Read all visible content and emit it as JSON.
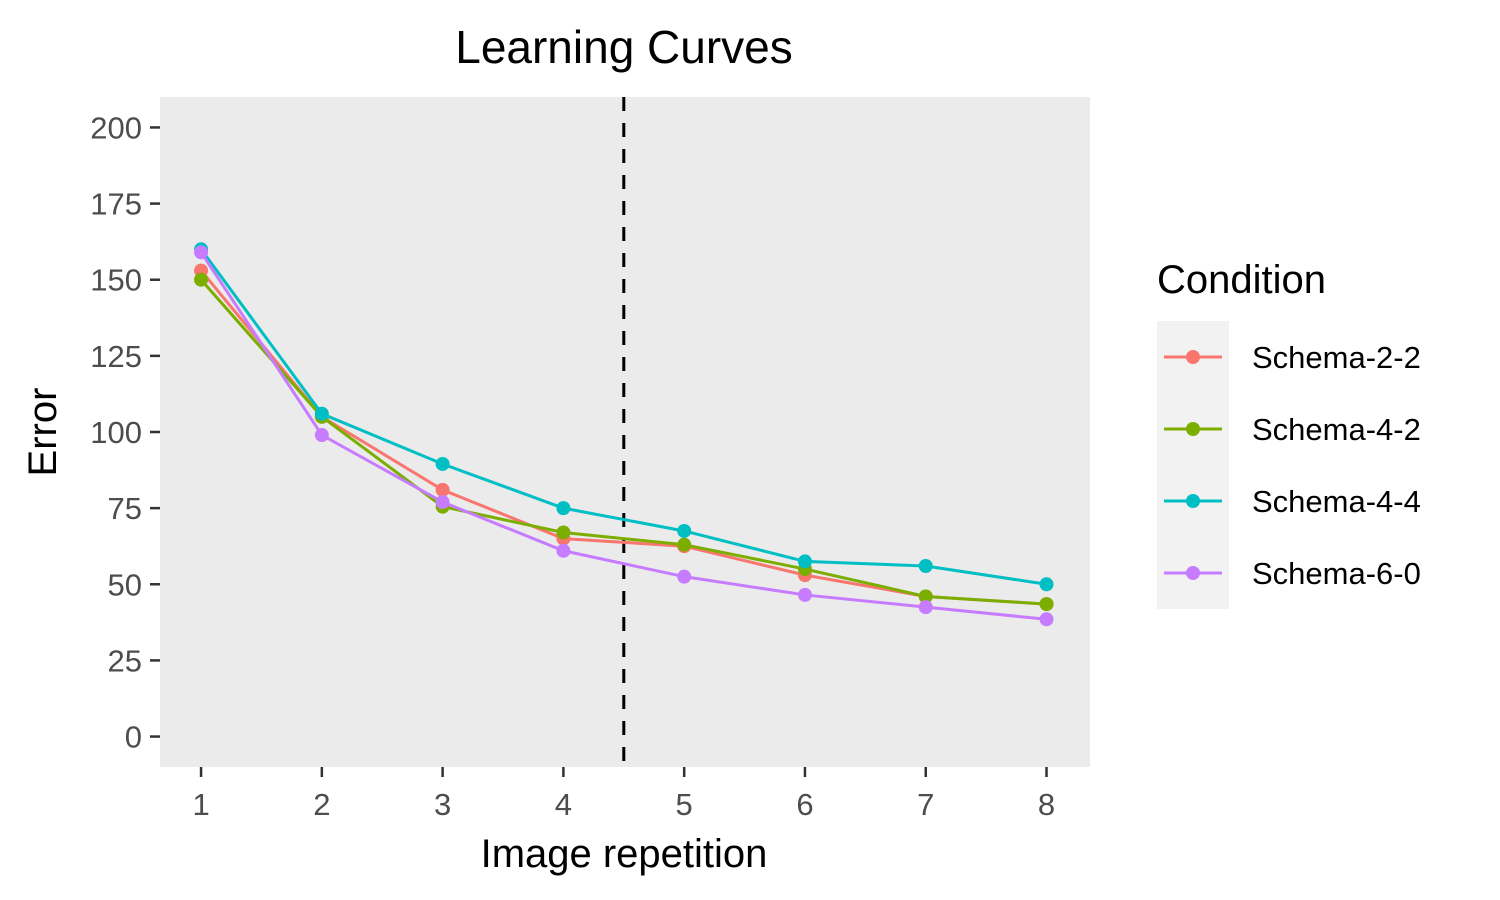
{
  "chart_data": {
    "type": "line",
    "title": "Learning Curves",
    "xlabel": "Image repetition",
    "ylabel": "Error",
    "x": [
      1,
      2,
      3,
      4,
      5,
      6,
      7,
      8
    ],
    "x_ticks": [
      "1",
      "2",
      "3",
      "4",
      "5",
      "6",
      "7",
      "8"
    ],
    "y_ticks": [
      "0",
      "25",
      "50",
      "75",
      "100",
      "125",
      "150",
      "175",
      "200"
    ],
    "xlim": [
      0.66,
      8.36
    ],
    "ylim": [
      -10,
      210
    ],
    "grid": false,
    "panel_background": "#ebebeb",
    "vertical_reference_line": {
      "x": 4.5,
      "style": "dashed",
      "color": "#000000"
    },
    "legend": {
      "title": "Condition",
      "position": "right"
    },
    "series": [
      {
        "name": "Schema-2-2",
        "color": "#F8766D",
        "values": [
          153,
          105,
          81,
          65,
          62.5,
          53,
          46,
          43.5
        ]
      },
      {
        "name": "Schema-4-2",
        "color": "#7CAE00",
        "values": [
          150,
          105,
          75.5,
          67,
          63,
          55,
          46,
          43.5
        ]
      },
      {
        "name": "Schema-4-4",
        "color": "#00BFC4",
        "values": [
          160,
          106,
          89.5,
          75,
          67.5,
          57.5,
          56,
          50
        ]
      },
      {
        "name": "Schema-6-0",
        "color": "#C77CFF",
        "values": [
          159,
          99,
          77,
          61,
          52.5,
          46.5,
          42.5,
          38.5
        ]
      }
    ]
  }
}
